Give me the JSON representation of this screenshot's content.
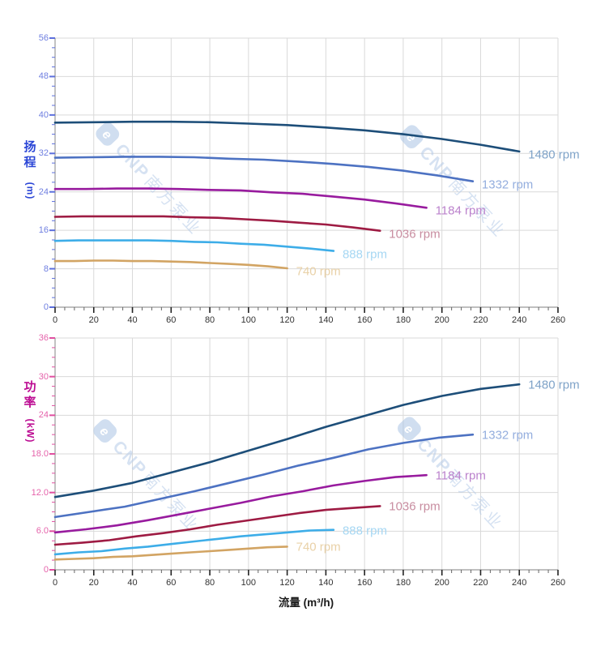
{
  "watermark": {
    "logo_letter": "e",
    "brand": "CNP",
    "brand_cn": "南方泵业",
    "color": "#b5cbe8",
    "logo_bg": "#aac4e4"
  },
  "flow_axis": {
    "title": "流量 (m³/h)",
    "tick_labels": [
      "0",
      "20",
      "40",
      "60",
      "80",
      "100",
      "120",
      "140",
      "160",
      "180",
      "200",
      "220",
      "240",
      "260"
    ]
  },
  "style_colors": {
    "grid": "#d9d9d9",
    "axis_line": "#999999",
    "x_tick_major": "#222222",
    "x_tick_minor": "#666666",
    "x_tick_label": "#333333"
  },
  "chart_data": [
    {
      "type": "line",
      "name": "head-curves",
      "ylabel_chars": [
        "扬",
        "程"
      ],
      "ylabel_unit": "(m)",
      "ylabel_full": "扬程 (m)",
      "xlabel": "流量 (m³/h)",
      "xlim": [
        0,
        260
      ],
      "ylim": [
        0,
        56
      ],
      "y_major_step": 8,
      "y_tick_labels": [
        "56",
        "48",
        "40",
        "32",
        "24",
        "16",
        "8",
        "0"
      ],
      "grid": true,
      "legend_position": "end-of-curve",
      "axis_colors": {
        "tick_label": "#6f7fe0",
        "tick_mark": "#5c6fdd",
        "title": "#2b46d6"
      },
      "series": [
        {
          "name": "1480 rpm",
          "color": "#1d4e79",
          "label_color": "#7fa3c8",
          "points": [
            [
              0,
              38.4
            ],
            [
              20,
              38.5
            ],
            [
              40,
              38.6
            ],
            [
              60,
              38.6
            ],
            [
              80,
              38.5
            ],
            [
              100,
              38.2
            ],
            [
              120,
              37.9
            ],
            [
              140,
              37.4
            ],
            [
              160,
              36.8
            ],
            [
              180,
              36.0
            ],
            [
              200,
              35.0
            ],
            [
              220,
              33.8
            ],
            [
              240,
              32.4
            ]
          ]
        },
        {
          "name": "1332 rpm",
          "color": "#4d72c2",
          "label_color": "#94aede",
          "points": [
            [
              0,
              31.1
            ],
            [
              18,
              31.2
            ],
            [
              36,
              31.3
            ],
            [
              54,
              31.3
            ],
            [
              72,
              31.2
            ],
            [
              90,
              30.9
            ],
            [
              108,
              30.7
            ],
            [
              126,
              30.3
            ],
            [
              144,
              29.8
            ],
            [
              162,
              29.2
            ],
            [
              180,
              28.4
            ],
            [
              198,
              27.4
            ],
            [
              216,
              26.2
            ]
          ]
        },
        {
          "name": "1184 rpm",
          "color": "#981b9e",
          "label_color": "#bb82cc",
          "points": [
            [
              0,
              24.6
            ],
            [
              16,
              24.6
            ],
            [
              32,
              24.7
            ],
            [
              48,
              24.7
            ],
            [
              64,
              24.6
            ],
            [
              80,
              24.4
            ],
            [
              96,
              24.3
            ],
            [
              112,
              23.9
            ],
            [
              128,
              23.6
            ],
            [
              144,
              23.0
            ],
            [
              160,
              22.4
            ],
            [
              176,
              21.6
            ],
            [
              192,
              20.7
            ]
          ]
        },
        {
          "name": "1036 rpm",
          "color": "#9e1b43",
          "label_color": "#c88da0",
          "points": [
            [
              0,
              18.8
            ],
            [
              14,
              18.9
            ],
            [
              28,
              18.9
            ],
            [
              42,
              18.9
            ],
            [
              56,
              18.9
            ],
            [
              70,
              18.7
            ],
            [
              84,
              18.6
            ],
            [
              98,
              18.3
            ],
            [
              112,
              18.0
            ],
            [
              126,
              17.6
            ],
            [
              140,
              17.2
            ],
            [
              154,
              16.6
            ],
            [
              168,
              15.9
            ]
          ]
        },
        {
          "name": "888 rpm",
          "color": "#3dade8",
          "label_color": "#a6d7f3",
          "points": [
            [
              0,
              13.8
            ],
            [
              12,
              13.9
            ],
            [
              24,
              13.9
            ],
            [
              36,
              13.9
            ],
            [
              48,
              13.9
            ],
            [
              60,
              13.8
            ],
            [
              72,
              13.6
            ],
            [
              84,
              13.5
            ],
            [
              96,
              13.2
            ],
            [
              108,
              13.0
            ],
            [
              120,
              12.6
            ],
            [
              132,
              12.2
            ],
            [
              144,
              11.7
            ]
          ]
        },
        {
          "name": "740 rpm",
          "color": "#d2a463",
          "label_color": "#e9d1a7",
          "points": [
            [
              0,
              9.6
            ],
            [
              10,
              9.6
            ],
            [
              20,
              9.7
            ],
            [
              30,
              9.7
            ],
            [
              40,
              9.6
            ],
            [
              50,
              9.6
            ],
            [
              60,
              9.5
            ],
            [
              70,
              9.4
            ],
            [
              80,
              9.2
            ],
            [
              90,
              9.0
            ],
            [
              100,
              8.8
            ],
            [
              110,
              8.5
            ],
            [
              120,
              8.1
            ]
          ]
        }
      ]
    },
    {
      "type": "line",
      "name": "power-curves",
      "ylabel_chars": [
        "功",
        "率"
      ],
      "ylabel_unit": "(kW)",
      "ylabel_full": "功率 (kW)",
      "xlabel": "流量 (m³/h)",
      "xlim": [
        0,
        260
      ],
      "ylim": [
        0,
        36
      ],
      "y_major_step": 6,
      "y_tick_labels": [
        "36",
        "30",
        "24",
        "18.0",
        "12.0",
        "6.0",
        "0"
      ],
      "grid": true,
      "legend_position": "end-of-curve",
      "axis_colors": {
        "tick_label": "#e563ab",
        "tick_mark": "#e04fa0",
        "title": "#bc0c92"
      },
      "series": [
        {
          "name": "1480 rpm",
          "color": "#1d4e79",
          "label_color": "#7fa3c8",
          "points": [
            [
              0,
              11.3
            ],
            [
              20,
              12.3
            ],
            [
              40,
              13.5
            ],
            [
              60,
              15.1
            ],
            [
              80,
              16.7
            ],
            [
              100,
              18.5
            ],
            [
              120,
              20.3
            ],
            [
              140,
              22.2
            ],
            [
              160,
              23.9
            ],
            [
              180,
              25.6
            ],
            [
              200,
              27.0
            ],
            [
              220,
              28.1
            ],
            [
              240,
              28.8
            ]
          ]
        },
        {
          "name": "1332 rpm",
          "color": "#4d72c2",
          "label_color": "#94aede",
          "points": [
            [
              0,
              8.2
            ],
            [
              18,
              9.0
            ],
            [
              36,
              9.8
            ],
            [
              54,
              11.0
            ],
            [
              72,
              12.2
            ],
            [
              90,
              13.5
            ],
            [
              108,
              14.8
            ],
            [
              126,
              16.2
            ],
            [
              144,
              17.4
            ],
            [
              162,
              18.7
            ],
            [
              180,
              19.7
            ],
            [
              198,
              20.5
            ],
            [
              216,
              21.0
            ]
          ]
        },
        {
          "name": "1184 rpm",
          "color": "#981b9e",
          "label_color": "#bb82cc",
          "points": [
            [
              0,
              5.8
            ],
            [
              16,
              6.3
            ],
            [
              32,
              6.9
            ],
            [
              48,
              7.7
            ],
            [
              64,
              8.6
            ],
            [
              80,
              9.5
            ],
            [
              96,
              10.4
            ],
            [
              112,
              11.4
            ],
            [
              128,
              12.2
            ],
            [
              144,
              13.1
            ],
            [
              160,
              13.8
            ],
            [
              176,
              14.4
            ],
            [
              192,
              14.7
            ]
          ]
        },
        {
          "name": "1036 rpm",
          "color": "#9e1b43",
          "label_color": "#c88da0",
          "points": [
            [
              0,
              3.9
            ],
            [
              14,
              4.2
            ],
            [
              28,
              4.6
            ],
            [
              42,
              5.2
            ],
            [
              56,
              5.7
            ],
            [
              70,
              6.3
            ],
            [
              84,
              7.0
            ],
            [
              98,
              7.6
            ],
            [
              112,
              8.2
            ],
            [
              126,
              8.8
            ],
            [
              140,
              9.3
            ],
            [
              154,
              9.6
            ],
            [
              168,
              9.9
            ]
          ]
        },
        {
          "name": "888 rpm",
          "color": "#3dade8",
          "label_color": "#a6d7f3",
          "points": [
            [
              0,
              2.4
            ],
            [
              12,
              2.7
            ],
            [
              24,
              2.9
            ],
            [
              36,
              3.3
            ],
            [
              48,
              3.6
            ],
            [
              60,
              4.0
            ],
            [
              72,
              4.4
            ],
            [
              84,
              4.8
            ],
            [
              96,
              5.2
            ],
            [
              108,
              5.5
            ],
            [
              120,
              5.8
            ],
            [
              132,
              6.1
            ],
            [
              144,
              6.2
            ]
          ]
        },
        {
          "name": "740 rpm",
          "color": "#d2a463",
          "label_color": "#e9d1a7",
          "points": [
            [
              0,
              1.6
            ],
            [
              10,
              1.7
            ],
            [
              20,
              1.8
            ],
            [
              30,
              2.0
            ],
            [
              40,
              2.1
            ],
            [
              50,
              2.3
            ],
            [
              60,
              2.5
            ],
            [
              70,
              2.7
            ],
            [
              80,
              2.9
            ],
            [
              90,
              3.1
            ],
            [
              100,
              3.3
            ],
            [
              110,
              3.5
            ],
            [
              120,
              3.6
            ]
          ]
        }
      ]
    }
  ]
}
